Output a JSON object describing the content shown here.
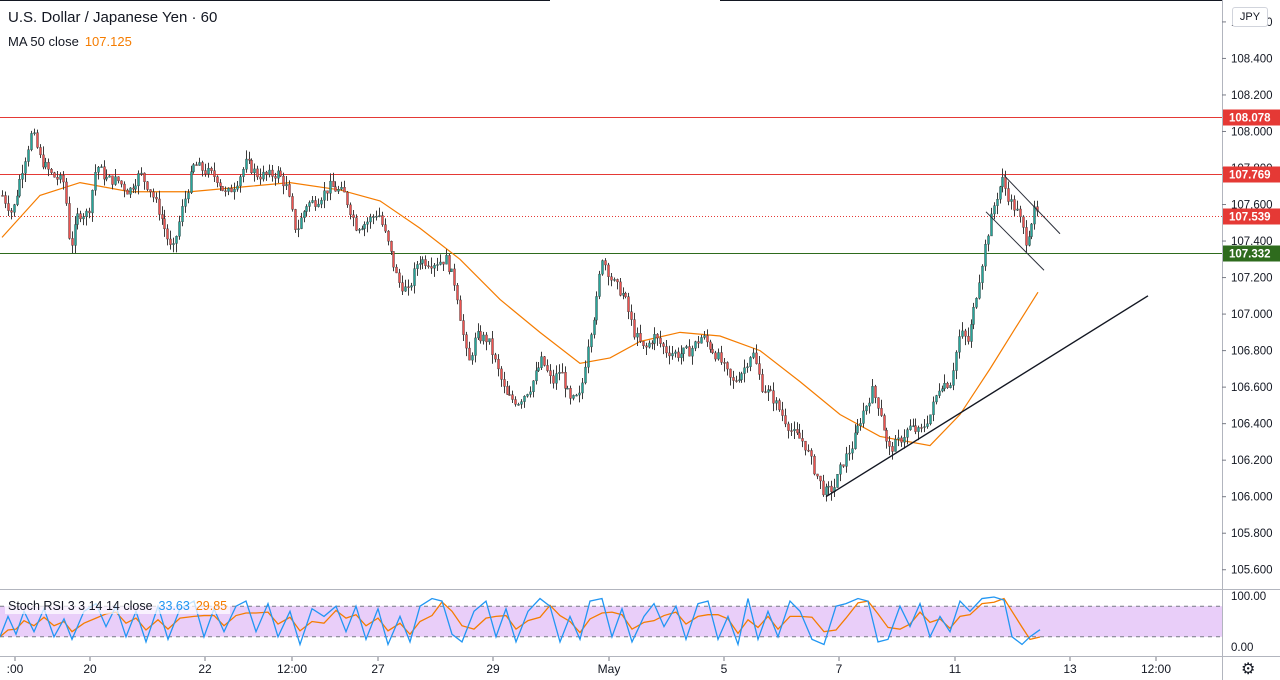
{
  "header": {
    "title": "U.S. Dollar / Japanese Yen · 60",
    "indicator_label": "MA 50 close",
    "indicator_value": "107.125"
  },
  "currency_badge": "JPY",
  "oscillator": {
    "label": "Stoch RSI 3 3 14 14 close",
    "k_value": "33.63",
    "d_value": "29.85",
    "ticks": [
      "100.00",
      "0.00"
    ],
    "upper_band": 80,
    "lower_band": 20
  },
  "settings_icon": "gear-icon",
  "colors": {
    "up": "#26a69a",
    "down": "#ef5350",
    "ma": "#f57c00",
    "resistance": "#e53935",
    "support": "#2e6b1d",
    "stoch_k": "#2196f3",
    "stoch_d": "#f57c00",
    "band_fill": "#e1bef7",
    "price_badge": "#e53935"
  },
  "chart_data": {
    "type": "candlestick",
    "symbol": "U.S. Dollar / Japanese Yen",
    "interval": "60",
    "ylim": [
      105.5,
      108.72
    ],
    "y_ticks": [
      "108.600",
      "108.400",
      "108.200",
      "108.000",
      "107.800",
      "107.600",
      "107.400",
      "107.200",
      "107.000",
      "106.800",
      "106.600",
      "106.400",
      "106.200",
      "106.000",
      "105.800",
      "105.600"
    ],
    "x_ticks": [
      {
        "label": ":00",
        "x": 15
      },
      {
        "label": "20",
        "x": 90
      },
      {
        "label": "22",
        "x": 205
      },
      {
        "label": "12:00",
        "x": 292
      },
      {
        "label": "27",
        "x": 378
      },
      {
        "label": "29",
        "x": 493
      },
      {
        "label": "May",
        "x": 609
      },
      {
        "label": "5",
        "x": 724
      },
      {
        "label": "7",
        "x": 839
      },
      {
        "label": "11",
        "x": 955
      },
      {
        "label": "13",
        "x": 1070
      },
      {
        "label": "12:00",
        "x": 1156
      }
    ],
    "horizontal_levels": [
      {
        "price": 108.078,
        "label": "108.078",
        "style": "resistance"
      },
      {
        "price": 107.769,
        "label": "107.769",
        "style": "resistance"
      },
      {
        "price": 107.332,
        "label": "107.332",
        "style": "support"
      }
    ],
    "last_price": {
      "price": 107.539,
      "label": "107.539"
    },
    "price_path": [
      {
        "x": 2,
        "p": 107.65
      },
      {
        "x": 12,
        "p": 107.55
      },
      {
        "x": 20,
        "p": 107.75
      },
      {
        "x": 32,
        "p": 108.0
      },
      {
        "x": 40,
        "p": 107.85
      },
      {
        "x": 52,
        "p": 107.76
      },
      {
        "x": 64,
        "p": 107.72
      },
      {
        "x": 70,
        "p": 107.35
      },
      {
        "x": 78,
        "p": 107.55
      },
      {
        "x": 88,
        "p": 107.55
      },
      {
        "x": 96,
        "p": 107.82
      },
      {
        "x": 106,
        "p": 107.74
      },
      {
        "x": 118,
        "p": 107.73
      },
      {
        "x": 128,
        "p": 107.67
      },
      {
        "x": 140,
        "p": 107.77
      },
      {
        "x": 150,
        "p": 107.68
      },
      {
        "x": 160,
        "p": 107.55
      },
      {
        "x": 172,
        "p": 107.33
      },
      {
        "x": 182,
        "p": 107.58
      },
      {
        "x": 194,
        "p": 107.82
      },
      {
        "x": 206,
        "p": 107.78
      },
      {
        "x": 216,
        "p": 107.75
      },
      {
        "x": 226,
        "p": 107.65
      },
      {
        "x": 236,
        "p": 107.72
      },
      {
        "x": 246,
        "p": 107.83
      },
      {
        "x": 258,
        "p": 107.76
      },
      {
        "x": 268,
        "p": 107.76
      },
      {
        "x": 278,
        "p": 107.77
      },
      {
        "x": 286,
        "p": 107.7
      },
      {
        "x": 296,
        "p": 107.45
      },
      {
        "x": 306,
        "p": 107.6
      },
      {
        "x": 316,
        "p": 107.62
      },
      {
        "x": 330,
        "p": 107.7
      },
      {
        "x": 344,
        "p": 107.66
      },
      {
        "x": 356,
        "p": 107.48
      },
      {
        "x": 366,
        "p": 107.5
      },
      {
        "x": 378,
        "p": 107.56
      },
      {
        "x": 388,
        "p": 107.38
      },
      {
        "x": 398,
        "p": 107.18
      },
      {
        "x": 408,
        "p": 107.12
      },
      {
        "x": 418,
        "p": 107.3
      },
      {
        "x": 432,
        "p": 107.28
      },
      {
        "x": 446,
        "p": 107.3
      },
      {
        "x": 456,
        "p": 107.15
      },
      {
        "x": 462,
        "p": 106.92
      },
      {
        "x": 468,
        "p": 106.72
      },
      {
        "x": 476,
        "p": 106.88
      },
      {
        "x": 488,
        "p": 106.86
      },
      {
        "x": 496,
        "p": 106.72
      },
      {
        "x": 506,
        "p": 106.55
      },
      {
        "x": 518,
        "p": 106.52
      },
      {
        "x": 530,
        "p": 106.6
      },
      {
        "x": 542,
        "p": 106.75
      },
      {
        "x": 552,
        "p": 106.62
      },
      {
        "x": 560,
        "p": 106.7
      },
      {
        "x": 570,
        "p": 106.52
      },
      {
        "x": 580,
        "p": 106.55
      },
      {
        "x": 588,
        "p": 106.85
      },
      {
        "x": 596,
        "p": 107.05
      },
      {
        "x": 602,
        "p": 107.32
      },
      {
        "x": 612,
        "p": 107.18
      },
      {
        "x": 624,
        "p": 107.1
      },
      {
        "x": 634,
        "p": 106.9
      },
      {
        "x": 644,
        "p": 106.8
      },
      {
        "x": 654,
        "p": 106.88
      },
      {
        "x": 666,
        "p": 106.8
      },
      {
        "x": 678,
        "p": 106.78
      },
      {
        "x": 690,
        "p": 106.8
      },
      {
        "x": 702,
        "p": 106.88
      },
      {
        "x": 710,
        "p": 106.82
      },
      {
        "x": 720,
        "p": 106.75
      },
      {
        "x": 732,
        "p": 106.62
      },
      {
        "x": 744,
        "p": 106.7
      },
      {
        "x": 752,
        "p": 106.8
      },
      {
        "x": 762,
        "p": 106.6
      },
      {
        "x": 772,
        "p": 106.55
      },
      {
        "x": 782,
        "p": 106.45
      },
      {
        "x": 792,
        "p": 106.35
      },
      {
        "x": 804,
        "p": 106.3
      },
      {
        "x": 814,
        "p": 106.15
      },
      {
        "x": 824,
        "p": 106.02
      },
      {
        "x": 834,
        "p": 106.05
      },
      {
        "x": 842,
        "p": 106.18
      },
      {
        "x": 852,
        "p": 106.28
      },
      {
        "x": 862,
        "p": 106.45
      },
      {
        "x": 872,
        "p": 106.58
      },
      {
        "x": 880,
        "p": 106.48
      },
      {
        "x": 888,
        "p": 106.25
      },
      {
        "x": 898,
        "p": 106.3
      },
      {
        "x": 910,
        "p": 106.38
      },
      {
        "x": 920,
        "p": 106.35
      },
      {
        "x": 930,
        "p": 106.45
      },
      {
        "x": 940,
        "p": 106.62
      },
      {
        "x": 950,
        "p": 106.62
      },
      {
        "x": 960,
        "p": 106.9
      },
      {
        "x": 968,
        "p": 106.85
      },
      {
        "x": 976,
        "p": 107.1
      },
      {
        "x": 986,
        "p": 107.4
      },
      {
        "x": 994,
        "p": 107.6
      },
      {
        "x": 1002,
        "p": 107.74
      },
      {
        "x": 1010,
        "p": 107.62
      },
      {
        "x": 1018,
        "p": 107.55
      },
      {
        "x": 1026,
        "p": 107.4
      },
      {
        "x": 1034,
        "p": 107.56
      },
      {
        "x": 1040,
        "p": 107.54
      }
    ],
    "ma50_path": [
      {
        "x": 2,
        "p": 107.42
      },
      {
        "x": 40,
        "p": 107.65
      },
      {
        "x": 80,
        "p": 107.72
      },
      {
        "x": 130,
        "p": 107.67
      },
      {
        "x": 190,
        "p": 107.67
      },
      {
        "x": 250,
        "p": 107.7
      },
      {
        "x": 290,
        "p": 107.72
      },
      {
        "x": 340,
        "p": 107.68
      },
      {
        "x": 380,
        "p": 107.62
      },
      {
        "x": 420,
        "p": 107.47
      },
      {
        "x": 460,
        "p": 107.3
      },
      {
        "x": 500,
        "p": 107.08
      },
      {
        "x": 540,
        "p": 106.9
      },
      {
        "x": 580,
        "p": 106.73
      },
      {
        "x": 610,
        "p": 106.76
      },
      {
        "x": 640,
        "p": 106.85
      },
      {
        "x": 680,
        "p": 106.9
      },
      {
        "x": 720,
        "p": 106.88
      },
      {
        "x": 760,
        "p": 106.8
      },
      {
        "x": 800,
        "p": 106.63
      },
      {
        "x": 840,
        "p": 106.45
      },
      {
        "x": 880,
        "p": 106.33
      },
      {
        "x": 930,
        "p": 106.28
      },
      {
        "x": 960,
        "p": 106.45
      },
      {
        "x": 990,
        "p": 106.7
      },
      {
        "x": 1015,
        "p": 106.92
      },
      {
        "x": 1038,
        "p": 107.12
      }
    ],
    "trendlines": [
      {
        "from": {
          "x": 826,
          "p": 106.0
        },
        "to": {
          "x": 1148,
          "p": 107.1
        },
        "color": "#131722"
      },
      {
        "from": {
          "x": 1004,
          "p": 107.76
        },
        "to": {
          "x": 1060,
          "p": 107.44
        },
        "color": "#2a2e39"
      },
      {
        "from": {
          "x": 986,
          "p": 107.56
        },
        "to": {
          "x": 1044,
          "p": 107.24
        },
        "color": "#2a2e39"
      }
    ],
    "stoch_path": [
      {
        "x": 0,
        "k": 20
      },
      {
        "x": 8,
        "k": 60
      },
      {
        "x": 16,
        "k": 25
      },
      {
        "x": 24,
        "k": 70
      },
      {
        "x": 34,
        "k": 30
      },
      {
        "x": 44,
        "k": 75
      },
      {
        "x": 54,
        "k": 20
      },
      {
        "x": 64,
        "k": 55
      },
      {
        "x": 72,
        "k": 15
      },
      {
        "x": 84,
        "k": 70
      },
      {
        "x": 96,
        "k": 85
      },
      {
        "x": 106,
        "k": 40
      },
      {
        "x": 116,
        "k": 80
      },
      {
        "x": 126,
        "k": 20
      },
      {
        "x": 136,
        "k": 70
      },
      {
        "x": 146,
        "k": 10
      },
      {
        "x": 158,
        "k": 80
      },
      {
        "x": 168,
        "k": 15
      },
      {
        "x": 180,
        "k": 75
      },
      {
        "x": 194,
        "k": 90
      },
      {
        "x": 204,
        "k": 20
      },
      {
        "x": 214,
        "k": 75
      },
      {
        "x": 224,
        "k": 30
      },
      {
        "x": 236,
        "k": 80
      },
      {
        "x": 246,
        "k": 90
      },
      {
        "x": 256,
        "k": 30
      },
      {
        "x": 268,
        "k": 85
      },
      {
        "x": 278,
        "k": 20
      },
      {
        "x": 290,
        "k": 70
      },
      {
        "x": 300,
        "k": 5
      },
      {
        "x": 312,
        "k": 75
      },
      {
        "x": 324,
        "k": 60
      },
      {
        "x": 336,
        "k": 80
      },
      {
        "x": 346,
        "k": 30
      },
      {
        "x": 356,
        "k": 80
      },
      {
        "x": 366,
        "k": 15
      },
      {
        "x": 378,
        "k": 75
      },
      {
        "x": 388,
        "k": 5
      },
      {
        "x": 400,
        "k": 60
      },
      {
        "x": 410,
        "k": 10
      },
      {
        "x": 420,
        "k": 80
      },
      {
        "x": 432,
        "k": 95
      },
      {
        "x": 442,
        "k": 90
      },
      {
        "x": 452,
        "k": 25
      },
      {
        "x": 462,
        "k": 10
      },
      {
        "x": 474,
        "k": 70
      },
      {
        "x": 486,
        "k": 90
      },
      {
        "x": 496,
        "k": 20
      },
      {
        "x": 506,
        "k": 75
      },
      {
        "x": 516,
        "k": 10
      },
      {
        "x": 528,
        "k": 70
      },
      {
        "x": 540,
        "k": 95
      },
      {
        "x": 550,
        "k": 80
      },
      {
        "x": 560,
        "k": 10
      },
      {
        "x": 570,
        "k": 60
      },
      {
        "x": 580,
        "k": 15
      },
      {
        "x": 590,
        "k": 90
      },
      {
        "x": 602,
        "k": 95
      },
      {
        "x": 612,
        "k": 20
      },
      {
        "x": 622,
        "k": 75
      },
      {
        "x": 632,
        "k": 10
      },
      {
        "x": 644,
        "k": 60
      },
      {
        "x": 654,
        "k": 85
      },
      {
        "x": 664,
        "k": 40
      },
      {
        "x": 676,
        "k": 80
      },
      {
        "x": 686,
        "k": 15
      },
      {
        "x": 698,
        "k": 85
      },
      {
        "x": 708,
        "k": 90
      },
      {
        "x": 718,
        "k": 15
      },
      {
        "x": 728,
        "k": 60
      },
      {
        "x": 738,
        "k": 5
      },
      {
        "x": 748,
        "k": 95
      },
      {
        "x": 758,
        "k": 15
      },
      {
        "x": 768,
        "k": 70
      },
      {
        "x": 778,
        "k": 20
      },
      {
        "x": 790,
        "k": 90
      },
      {
        "x": 800,
        "k": 70
      },
      {
        "x": 812,
        "k": 15
      },
      {
        "x": 824,
        "k": 5
      },
      {
        "x": 836,
        "k": 80
      },
      {
        "x": 846,
        "k": 85
      },
      {
        "x": 858,
        "k": 95
      },
      {
        "x": 868,
        "k": 90
      },
      {
        "x": 878,
        "k": 10
      },
      {
        "x": 888,
        "k": 15
      },
      {
        "x": 900,
        "k": 80
      },
      {
        "x": 910,
        "k": 40
      },
      {
        "x": 920,
        "k": 85
      },
      {
        "x": 930,
        "k": 20
      },
      {
        "x": 940,
        "k": 60
      },
      {
        "x": 950,
        "k": 30
      },
      {
        "x": 960,
        "k": 90
      },
      {
        "x": 970,
        "k": 70
      },
      {
        "x": 982,
        "k": 95
      },
      {
        "x": 994,
        "k": 98
      },
      {
        "x": 1004,
        "k": 92
      },
      {
        "x": 1012,
        "k": 20
      },
      {
        "x": 1022,
        "k": 5
      },
      {
        "x": 1030,
        "k": 20
      },
      {
        "x": 1040,
        "k": 34
      }
    ]
  }
}
